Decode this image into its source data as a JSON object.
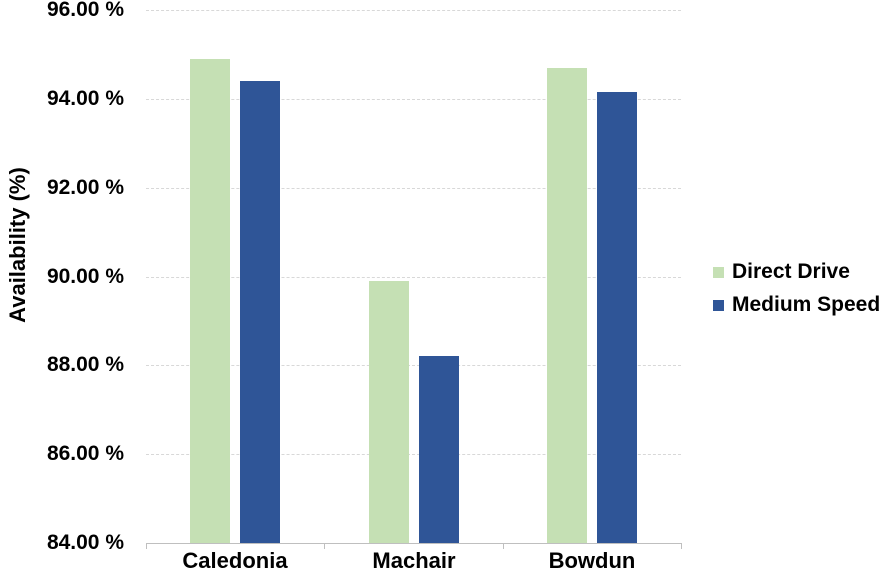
{
  "chart_data": {
    "type": "bar",
    "title": "",
    "ylabel": "Availability (%)",
    "categories": [
      "Caledonia",
      "Machair",
      "Bowdun"
    ],
    "series": [
      {
        "name": "Direct Drive",
        "color": "#c5e0b4",
        "values": [
          94.9,
          89.9,
          94.7
        ]
      },
      {
        "name": "Medium Speed",
        "color": "#2f5597",
        "values": [
          94.4,
          88.2,
          94.15
        ]
      }
    ],
    "ylim": [
      84,
      96
    ],
    "ytick_step": 2,
    "ytick_labels": [
      "96.00 %",
      "94.00 %",
      "92.00 %",
      "90.00 %",
      "88.00 %",
      "86.00 %",
      "84.00 %"
    ],
    "grid": true,
    "legend_position": "right",
    "colors": {
      "gridline": "#d8d8d8",
      "axis": "#bfbfbf",
      "text": "#000000",
      "background": "#ffffff"
    }
  }
}
